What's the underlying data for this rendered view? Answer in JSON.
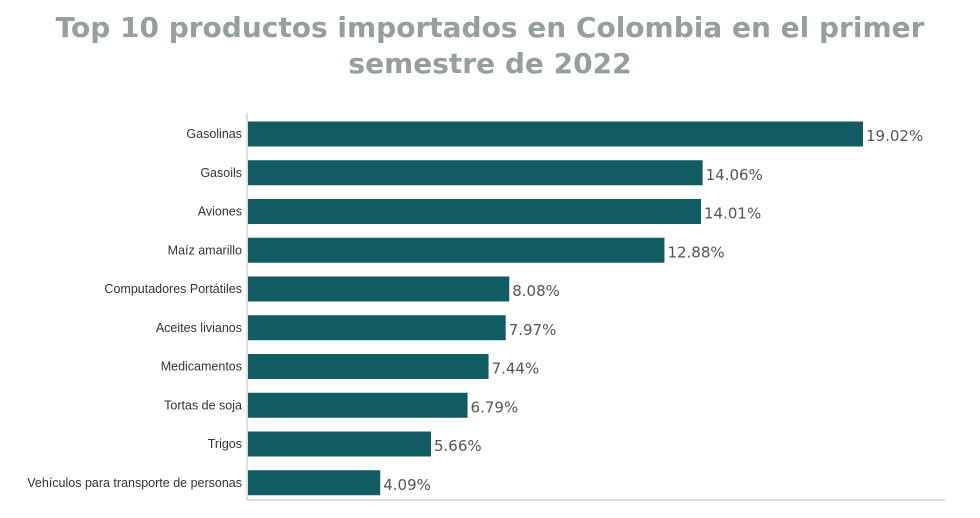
{
  "title": {
    "line1": "Top 10 productos importados en Colombia en el primer",
    "line2": "semestre de 2022"
  },
  "colors": {
    "bar": "#115c63",
    "title": "#96a09a"
  },
  "chart_data": {
    "type": "bar",
    "orientation": "horizontal",
    "title": "Top 10 productos importados en Colombia en el primer semestre de 2022",
    "categories": [
      "Gasolinas",
      "Gasoils",
      "Aviones",
      "Maíz amarillo",
      "Computadores Portátiles",
      "Aceites livianos",
      "Medicamentos",
      "Tortas de soja",
      "Trigos",
      "Vehículos para transporte de personas"
    ],
    "values": [
      19.02,
      14.06,
      14.01,
      12.88,
      8.08,
      7.97,
      7.44,
      6.79,
      5.66,
      4.09
    ],
    "value_labels": [
      "19.02%",
      "14.06%",
      "14.01%",
      "12.88%",
      "8.08%",
      "7.97%",
      "7.44%",
      "6.79%",
      "5.66%",
      "4.09%"
    ],
    "unit": "%",
    "xlim": [
      0,
      19.02
    ],
    "grid": false,
    "legend": "none"
  }
}
